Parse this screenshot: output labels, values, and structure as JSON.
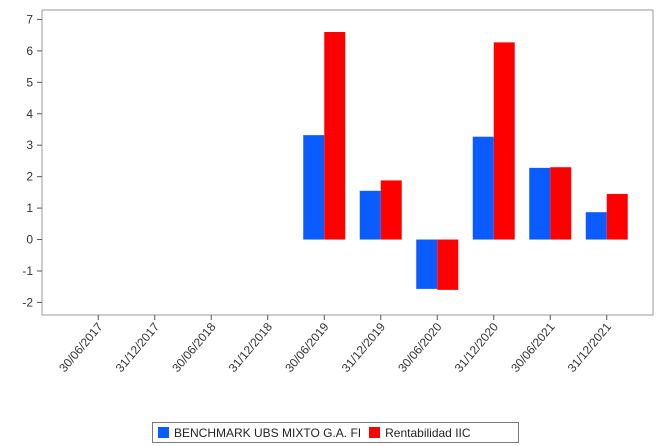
{
  "chart_data": {
    "type": "bar",
    "categories": [
      "30/06/2017",
      "31/12/2017",
      "30/06/2018",
      "31/12/2018",
      "30/06/2019",
      "31/12/2019",
      "30/06/2020",
      "31/12/2020",
      "30/06/2021",
      "31/12/2021"
    ],
    "series": [
      {
        "name": "BENCHMARK UBS MIXTO G.A. FI",
        "color": "#0a5cff",
        "values": [
          null,
          null,
          null,
          null,
          3.32,
          1.55,
          -1.57,
          3.27,
          2.28,
          0.87
        ]
      },
      {
        "name": "Rentabilidad IIC",
        "color": "#ff0000",
        "values": [
          null,
          null,
          null,
          null,
          6.6,
          1.88,
          -1.6,
          6.27,
          2.3,
          1.45
        ]
      }
    ],
    "yticks": [
      -2,
      -1,
      0,
      1,
      2,
      3,
      4,
      5,
      6,
      7
    ],
    "ylim": [
      -2.4,
      7.3
    ],
    "grid": false,
    "legend": "bottom"
  }
}
